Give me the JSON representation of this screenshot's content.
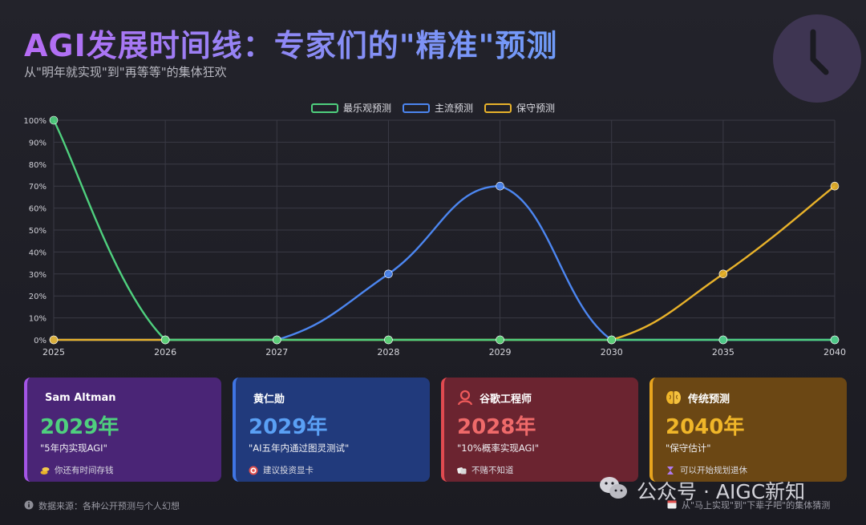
{
  "header": {
    "title": "AGI发展时间线：专家们的\"精准\"预测",
    "subtitle": "从\"明年就实现\"到\"再等等\"的集体狂欢"
  },
  "chart_data": {
    "type": "line",
    "categories": [
      "2025",
      "2026",
      "2027",
      "2028",
      "2029",
      "2030",
      "2035",
      "2040"
    ],
    "yticks": [
      "0%",
      "10%",
      "20%",
      "30%",
      "40%",
      "50%",
      "60%",
      "70%",
      "80%",
      "90%",
      "100%"
    ],
    "ylim": [
      0,
      100
    ],
    "grid": true,
    "legend_position": "top",
    "series": [
      {
        "name": "最乐观预测",
        "color": "#4fd07e",
        "values": [
          100,
          0,
          0,
          0,
          0,
          0,
          0,
          0
        ]
      },
      {
        "name": "主流预测",
        "color": "#4c86f0",
        "values": [
          0,
          0,
          0,
          30,
          70,
          0,
          0,
          0
        ]
      },
      {
        "name": "保守预测",
        "color": "#e8b22a",
        "values": [
          0,
          0,
          0,
          0,
          0,
          0,
          30,
          70
        ]
      }
    ]
  },
  "cards": [
    {
      "name": "Sam Altman",
      "year": "2029年",
      "quote": "\"5年内实现AGI\"",
      "note": "你还有时间存钱",
      "icon": "none",
      "note_icon": "coins-icon",
      "accent": "#4fd07e",
      "bg": "#4a2576",
      "border": "#a455e6",
      "note_color": "#e8b22a"
    },
    {
      "name": "黄仁勋",
      "year": "2029年",
      "quote": "\"AI五年内通过图灵测试\"",
      "note": "建议投资显卡",
      "icon": "none",
      "note_icon": "target-icon",
      "accent": "#5aa0f5",
      "bg": "#213a7c",
      "border": "#3f75e4",
      "note_color": "#e0504f"
    },
    {
      "name": "谷歌工程师",
      "year": "2028年",
      "quote": "\"10%概率实现AGI\"",
      "note": "不赌不知道",
      "icon": "engineer-icon",
      "note_icon": "dice-icon",
      "accent": "#ef6a6a",
      "bg": "#6b2430",
      "border": "#e04a50",
      "note_color": "#eeeeee"
    },
    {
      "name": "传统预测",
      "year": "2040年",
      "quote": "\"保守估计\"",
      "note": "可以开始规划退休",
      "icon": "brain-icon",
      "note_icon": "hourglass-icon",
      "accent": "#f0b629",
      "bg": "#6b4714",
      "border": "#e8a51e",
      "note_color": "#b07af0"
    }
  ],
  "footer": {
    "source": "数据来源：各种公开预测与个人幻想",
    "tagline": "从\"马上实现\"到\"下辈子吧\"的集体猜测"
  },
  "watermark": "公众号 · AIGC新知",
  "colors": {
    "grid": "#3a3a45",
    "axis_text": "#d7d7dd"
  }
}
